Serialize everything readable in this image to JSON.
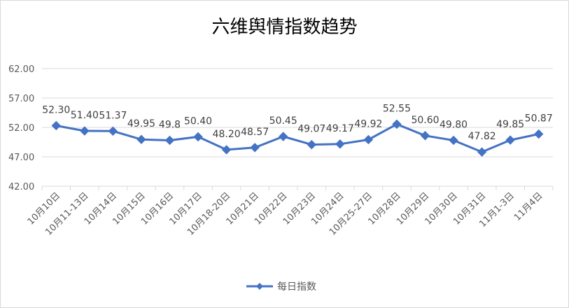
{
  "chart_data": {
    "type": "line",
    "title": "六维舆情指数趋势",
    "categories": [
      "10月10日",
      "10月11-13日",
      "10月14日",
      "10月15日",
      "10月16日",
      "10月17日",
      "10月18-20日",
      "10月21日",
      "10月22日",
      "10月23日",
      "10月24日",
      "10月25-27日",
      "10月28日",
      "10月29日",
      "10月30日",
      "10月31日",
      "11月1-3日",
      "11月4日"
    ],
    "series": [
      {
        "name": "每日指数",
        "values": [
          52.3,
          51.4,
          51.37,
          49.95,
          49.8,
          50.4,
          48.2,
          48.57,
          50.45,
          49.07,
          49.17,
          49.92,
          52.55,
          50.6,
          49.8,
          47.82,
          49.85,
          50.87
        ],
        "labels": [
          "52.30",
          "51.40",
          "51.37",
          "49.95",
          "49.8",
          "50.40",
          "48.20",
          "48.57",
          "50.45",
          "49.07",
          "49.17",
          "49.92",
          "52.55",
          "50.60",
          "49.80",
          "47.82",
          "49.85",
          "50.87"
        ]
      }
    ],
    "yticks": [
      "42.00",
      "47.00",
      "52.00",
      "57.00",
      "62.00"
    ],
    "ylim": [
      42,
      62
    ],
    "grid": true,
    "legend": "bottom",
    "color": "#4472c4"
  }
}
